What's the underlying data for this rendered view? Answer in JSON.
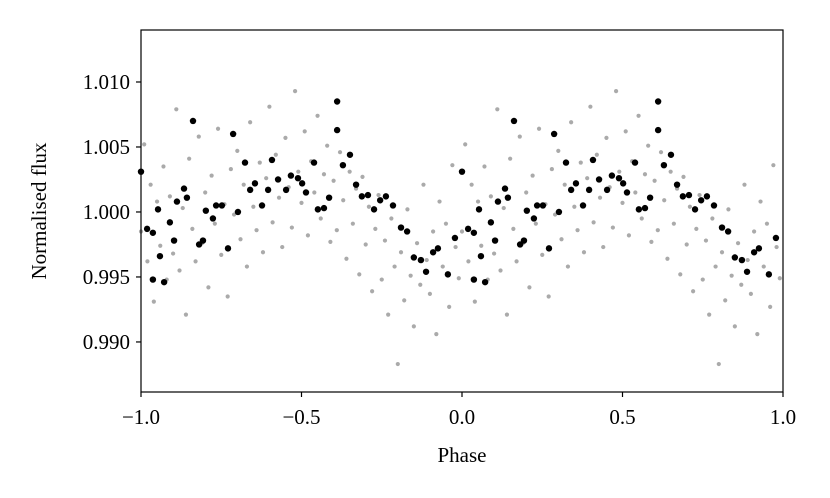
{
  "chart_data": {
    "type": "scatter",
    "xlabel": "Phase",
    "ylabel": "Normalised flux",
    "xlim": [
      -1.0,
      1.0
    ],
    "ylim": [
      0.98615,
      1.014
    ],
    "xticks": [
      {
        "value": -1.0,
        "label": "−1.0"
      },
      {
        "value": -0.5,
        "label": "−0.5"
      },
      {
        "value": 0.0,
        "label": "0.0"
      },
      {
        "value": 0.5,
        "label": "0.5"
      },
      {
        "value": 1.0,
        "label": "1.0"
      }
    ],
    "yticks": [
      {
        "value": 0.99,
        "label": "0.990"
      },
      {
        "value": 0.995,
        "label": "0.995"
      },
      {
        "value": 1.0,
        "label": "1.000"
      },
      {
        "value": 1.005,
        "label": "1.005"
      },
      {
        "value": 1.01,
        "label": "1.010"
      }
    ],
    "series": [
      {
        "color": "#aaaaaa",
        "size": 2.1,
        "x": [
          -1.0,
          -0.99,
          -0.98,
          -0.97,
          -0.96,
          -0.95,
          -0.94,
          -0.93,
          -0.92,
          -0.91,
          -0.9,
          -0.89,
          -0.88,
          -0.87,
          -0.86,
          -0.85,
          -0.84,
          -0.83,
          -0.82,
          -0.81,
          -0.8,
          -0.79,
          -0.78,
          -0.77,
          -0.76,
          -0.75,
          -0.74,
          -0.73,
          -0.72,
          -0.71,
          -0.7,
          -0.69,
          -0.68,
          -0.67,
          -0.66,
          -0.65,
          -0.64,
          -0.63,
          -0.62,
          -0.61,
          -0.6,
          -0.59,
          -0.58,
          -0.57,
          -0.56,
          -0.55,
          -0.54,
          -0.53,
          -0.52,
          -0.51,
          -0.5,
          -0.49,
          -0.48,
          -0.47,
          -0.46,
          -0.45,
          -0.44,
          -0.43,
          -0.42,
          -0.41,
          -0.4,
          -0.39,
          -0.38,
          -0.37,
          -0.36,
          -0.35,
          -0.34,
          -0.33,
          -0.32,
          -0.31,
          -0.3,
          -0.29,
          -0.28,
          -0.27,
          -0.26,
          -0.25,
          -0.24,
          -0.23,
          -0.22,
          -0.21,
          -0.2,
          -0.19,
          -0.18,
          -0.17,
          -0.16,
          -0.15,
          -0.14,
          -0.13,
          -0.12,
          -0.11,
          -0.1,
          -0.09,
          -0.08,
          -0.07,
          -0.06,
          -0.05,
          -0.04,
          -0.03,
          -0.02,
          -0.01,
          0.0,
          0.01,
          0.02,
          0.03,
          0.04,
          0.05,
          0.06,
          0.07,
          0.08,
          0.09,
          0.1,
          0.11,
          0.12,
          0.13,
          0.14,
          0.15,
          0.16,
          0.17,
          0.18,
          0.19,
          0.2,
          0.21,
          0.22,
          0.23,
          0.24,
          0.25,
          0.26,
          0.27,
          0.28,
          0.29,
          0.3,
          0.31,
          0.32,
          0.33,
          0.34,
          0.35,
          0.36,
          0.37,
          0.38,
          0.39,
          0.4,
          0.41,
          0.42,
          0.43,
          0.44,
          0.45,
          0.46,
          0.47,
          0.48,
          0.49,
          0.5,
          0.51,
          0.52,
          0.53,
          0.54,
          0.55,
          0.56,
          0.57,
          0.58,
          0.59,
          0.6,
          0.61,
          0.62,
          0.63,
          0.64,
          0.65,
          0.66,
          0.67,
          0.68,
          0.69,
          0.7,
          0.71,
          0.72,
          0.73,
          0.74,
          0.75,
          0.76,
          0.77,
          0.78,
          0.79,
          0.8,
          0.81,
          0.82,
          0.83,
          0.84,
          0.85,
          0.86,
          0.87,
          0.88,
          0.89,
          0.9,
          0.91,
          0.92,
          0.93,
          0.94,
          0.95,
          0.96,
          0.97,
          0.98,
          0.99
        ],
        "values": [
          0.9985,
          1.0052,
          0.9962,
          1.0021,
          0.9931,
          1.0008,
          0.9974,
          1.0035,
          0.9948,
          1.0012,
          0.9968,
          1.0079,
          0.9955,
          1.0003,
          0.9921,
          1.0041,
          0.9987,
          0.9962,
          1.0058,
          0.9976,
          1.0015,
          0.9942,
          1.0028,
          0.9991,
          1.0064,
          0.9967,
          1.0006,
          0.9935,
          1.0033,
          0.9998,
          1.0047,
          0.9979,
          1.0021,
          0.9958,
          1.0069,
          1.0004,
          0.9986,
          1.0038,
          0.9969,
          1.0026,
          1.0081,
          0.9992,
          1.0044,
          1.0011,
          0.9973,
          1.0057,
          1.0019,
          0.9988,
          1.0093,
          1.0031,
          1.0007,
          1.0062,
          0.9982,
          1.0039,
          1.0015,
          1.0074,
          0.9995,
          1.0029,
          1.0051,
          0.9977,
          1.0024,
          0.9986,
          1.0046,
          1.0009,
          0.9964,
          1.0031,
          0.9991,
          1.0018,
          0.9952,
          1.0027,
          0.9975,
          1.0004,
          0.9939,
          0.9987,
          1.0013,
          0.9948,
          0.9978,
          0.9921,
          0.9995,
          0.9958,
          0.9883,
          0.9969,
          0.9932,
          1.0002,
          0.9951,
          0.9912,
          0.9976,
          0.9944,
          1.0021,
          0.9963,
          0.9937,
          0.9985,
          0.9906,
          1.0008,
          0.9958,
          0.9991,
          0.9927,
          1.0036,
          0.9973,
          0.9949,
          0.9985,
          1.0052,
          0.9962,
          1.0021,
          0.9931,
          1.0008,
          0.9974,
          1.0035,
          0.9948,
          1.0012,
          0.9968,
          1.0079,
          0.9955,
          1.0003,
          0.9921,
          1.0041,
          0.9987,
          0.9962,
          1.0058,
          0.9976,
          1.0015,
          0.9942,
          1.0028,
          0.9991,
          1.0064,
          0.9967,
          1.0006,
          0.9935,
          1.0033,
          0.9998,
          1.0047,
          0.9979,
          1.0021,
          0.9958,
          1.0069,
          1.0004,
          0.9986,
          1.0038,
          0.9969,
          1.0026,
          1.0081,
          0.9992,
          1.0044,
          1.0011,
          0.9973,
          1.0057,
          1.0019,
          0.9988,
          1.0093,
          1.0031,
          1.0007,
          1.0062,
          0.9982,
          1.0039,
          1.0015,
          1.0074,
          0.9995,
          1.0029,
          1.0051,
          0.9977,
          1.0024,
          0.9986,
          1.0046,
          1.0009,
          0.9964,
          1.0031,
          0.9991,
          1.0018,
          0.9952,
          1.0027,
          0.9975,
          1.0004,
          0.9939,
          0.9987,
          1.0013,
          0.9948,
          0.9978,
          0.9921,
          0.9995,
          0.9958,
          0.9883,
          0.9969,
          0.9932,
          1.0002,
          0.9951,
          0.9912,
          0.9976,
          0.9944,
          1.0021,
          0.9963,
          0.9937,
          0.9985,
          0.9906,
          1.0008,
          0.9958,
          0.9991,
          0.9927,
          1.0036,
          0.9973,
          0.9949
        ]
      },
      {
        "color": "#000000",
        "size": 3.2,
        "x": [
          -1.0,
          -0.981,
          -0.963,
          -0.947,
          -0.963,
          -0.941,
          -0.928,
          -0.91,
          -0.897,
          -0.888,
          -0.866,
          -0.857,
          -0.838,
          -0.819,
          -0.807,
          -0.798,
          -0.776,
          -0.766,
          -0.748,
          -0.729,
          -0.713,
          -0.698,
          -0.676,
          -0.66,
          -0.645,
          -0.623,
          -0.604,
          -0.592,
          -0.573,
          -0.548,
          -0.533,
          -0.511,
          -0.498,
          -0.486,
          -0.461,
          -0.449,
          -0.43,
          -0.414,
          -0.389,
          -0.371,
          -0.349,
          -0.33,
          -0.312,
          -0.293,
          -0.274,
          -0.255,
          -0.237,
          -0.215,
          -0.19,
          -0.171,
          -0.15,
          -0.128,
          -0.112,
          -0.09,
          -0.075,
          -0.044,
          -0.022,
          -0.389,
          0.0,
          0.019,
          0.037,
          0.053,
          0.037,
          0.059,
          0.072,
          0.09,
          0.103,
          0.112,
          0.134,
          0.143,
          0.162,
          0.181,
          0.193,
          0.202,
          0.224,
          0.234,
          0.252,
          0.271,
          0.287,
          0.302,
          0.324,
          0.34,
          0.355,
          0.377,
          0.396,
          0.408,
          0.427,
          0.452,
          0.467,
          0.489,
          0.502,
          0.514,
          0.539,
          0.551,
          0.57,
          0.586,
          0.611,
          0.629,
          0.651,
          0.67,
          0.688,
          0.707,
          0.726,
          0.745,
          0.763,
          0.785,
          0.81,
          0.829,
          0.85,
          0.872,
          0.888,
          0.91,
          0.925,
          0.956,
          0.978,
          0.611
        ],
        "values": [
          1.0031,
          0.9987,
          0.9984,
          1.0002,
          0.9948,
          0.9966,
          0.9946,
          0.9992,
          0.9978,
          1.0008,
          1.0018,
          1.0011,
          1.007,
          0.9975,
          0.9978,
          1.0001,
          0.9995,
          1.0005,
          1.0005,
          0.9972,
          1.006,
          1.0,
          1.0038,
          1.0017,
          1.0022,
          1.0005,
          1.0017,
          1.004,
          1.0025,
          1.0017,
          1.0028,
          1.0026,
          1.0022,
          1.0015,
          1.0038,
          1.0002,
          1.0003,
          1.0011,
          1.0085,
          1.0036,
          1.0044,
          1.0021,
          1.0012,
          1.0013,
          1.0002,
          1.0009,
          1.0012,
          1.0005,
          0.9988,
          0.9985,
          0.9965,
          0.9963,
          0.9954,
          0.9969,
          0.9972,
          0.9952,
          0.998,
          1.0063,
          1.0031,
          0.9987,
          0.9984,
          1.0002,
          0.9948,
          0.9966,
          0.9946,
          0.9992,
          0.9978,
          1.0008,
          1.0018,
          1.0011,
          1.007,
          0.9975,
          0.9978,
          1.0001,
          0.9995,
          1.0005,
          1.0005,
          0.9972,
          1.006,
          1.0,
          1.0038,
          1.0017,
          1.0022,
          1.0005,
          1.0017,
          1.004,
          1.0025,
          1.0017,
          1.0028,
          1.0026,
          1.0022,
          1.0015,
          1.0038,
          1.0002,
          1.0003,
          1.0011,
          1.0085,
          1.0036,
          1.0044,
          1.0021,
          1.0012,
          1.0013,
          1.0002,
          1.0009,
          1.0012,
          1.0005,
          0.9988,
          0.9985,
          0.9965,
          0.9963,
          0.9954,
          0.9969,
          0.9972,
          0.9952,
          0.998,
          1.0063
        ]
      }
    ]
  }
}
